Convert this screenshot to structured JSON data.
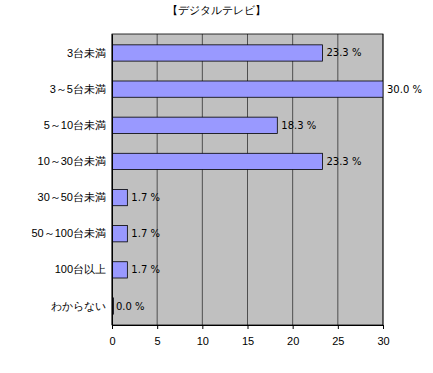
{
  "chart_data": {
    "type": "bar",
    "title": "【デジタルテレビ】",
    "orientation": "horizontal",
    "categories": [
      "3台未満",
      "3～5台未満",
      "5～10台未満",
      "10～30台未満",
      "30～50台未満",
      "50～100台未満",
      "100台以上",
      "わからない"
    ],
    "values": [
      23.3,
      30.0,
      18.3,
      23.3,
      1.7,
      1.7,
      1.7,
      0.0
    ],
    "value_labels": [
      "23.3 %",
      "30.0 %",
      "18.3 %",
      "23.3 %",
      "1.7 %",
      "1.7 %",
      "1.7 %",
      "0.0 %"
    ],
    "data_labels": true,
    "color": "#9999ff",
    "xlim": [
      0,
      30
    ],
    "xticks": [
      0,
      5,
      10,
      15,
      20,
      25,
      30
    ],
    "grid": true
  }
}
